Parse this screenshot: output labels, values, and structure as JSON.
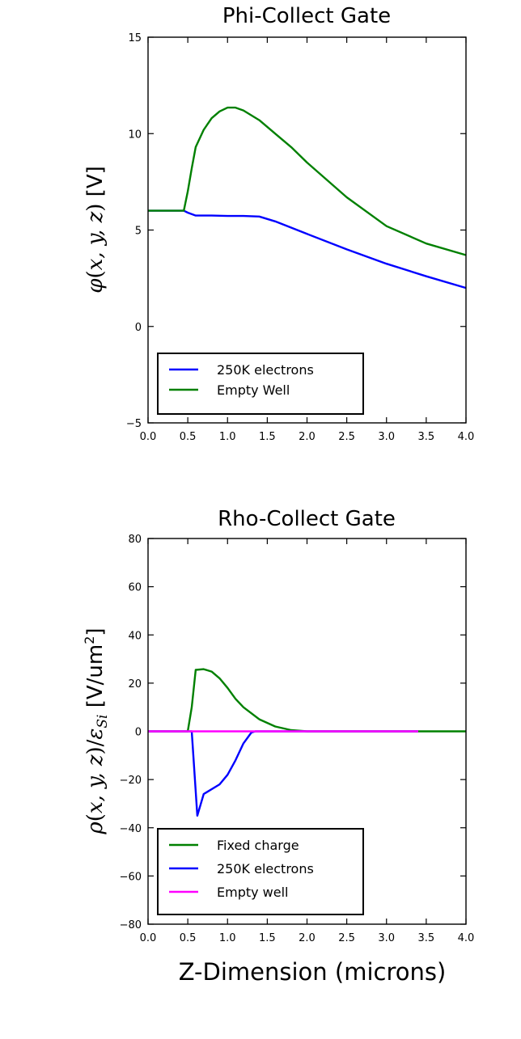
{
  "chart_data": [
    {
      "type": "line",
      "title": "Phi-Collect Gate",
      "xlabel": "",
      "ylabel": "φ(x, y, z) [V]",
      "xlim": [
        0.0,
        4.0
      ],
      "ylim": [
        -5,
        15
      ],
      "xticks": [
        "0.0",
        "0.5",
        "1.0",
        "1.5",
        "2.0",
        "2.5",
        "3.0",
        "3.5",
        "4.0"
      ],
      "yticks": [
        "−5",
        "0",
        "5",
        "10",
        "15"
      ],
      "legend": {
        "placement": "lower-left"
      },
      "series": [
        {
          "name": "250K electrons",
          "color": "#0000ff",
          "x": [
            0.0,
            0.45,
            0.5,
            0.6,
            0.8,
            1.0,
            1.2,
            1.4,
            1.6,
            2.0,
            2.5,
            3.0,
            3.5,
            4.0
          ],
          "y": [
            6.0,
            6.0,
            5.9,
            5.75,
            5.75,
            5.73,
            5.73,
            5.7,
            5.45,
            4.8,
            4.0,
            3.25,
            2.6,
            2.0
          ]
        },
        {
          "name": "Empty Well",
          "color": "#008000",
          "x": [
            0.0,
            0.45,
            0.5,
            0.55,
            0.6,
            0.7,
            0.8,
            0.9,
            1.0,
            1.1,
            1.2,
            1.4,
            1.6,
            1.8,
            2.0,
            2.5,
            3.0,
            3.5,
            4.0
          ],
          "y": [
            6.0,
            6.0,
            7.0,
            8.2,
            9.3,
            10.2,
            10.8,
            11.15,
            11.35,
            11.35,
            11.2,
            10.7,
            10.0,
            9.3,
            8.5,
            6.7,
            5.2,
            4.3,
            3.7
          ]
        }
      ]
    },
    {
      "type": "line",
      "title": "Rho-Collect Gate",
      "xlabel": "Z-Dimension (microns)",
      "ylabel": "ρ(x, y, z)/ε_Si [V/um²]",
      "xlim": [
        0.0,
        4.0
      ],
      "ylim": [
        -80,
        80
      ],
      "xticks": [
        "0.0",
        "0.5",
        "1.0",
        "1.5",
        "2.0",
        "2.5",
        "3.0",
        "3.5",
        "4.0"
      ],
      "yticks": [
        "−80",
        "−60",
        "−40",
        "−20",
        "0",
        "20",
        "40",
        "60",
        "80"
      ],
      "legend": {
        "placement": "lower-left"
      },
      "series": [
        {
          "name": "Fixed charge",
          "color": "#008000",
          "x": [
            0.0,
            0.5,
            0.55,
            0.6,
            0.7,
            0.8,
            0.9,
            1.0,
            1.1,
            1.2,
            1.4,
            1.6,
            1.8,
            2.0,
            2.5,
            3.0,
            3.5,
            4.0
          ],
          "y": [
            0,
            0,
            10,
            25.5,
            25.8,
            24.8,
            22,
            18,
            13.5,
            10,
            5,
            2,
            0.5,
            0,
            0,
            0,
            0,
            0
          ]
        },
        {
          "name": "250K electrons",
          "color": "#0000ff",
          "x": [
            0.0,
            0.55,
            0.62,
            0.7,
            0.9,
            1.0,
            1.1,
            1.2,
            1.3,
            1.35,
            1.4,
            2.0,
            3.4
          ],
          "y": [
            0,
            0,
            -35,
            -26,
            -22,
            -18,
            -12,
            -5,
            -0.5,
            0,
            0,
            0,
            0
          ]
        },
        {
          "name": "Empty well",
          "color": "#ff00ff",
          "x": [
            0.0,
            3.4
          ],
          "y": [
            0,
            0
          ]
        }
      ]
    }
  ]
}
